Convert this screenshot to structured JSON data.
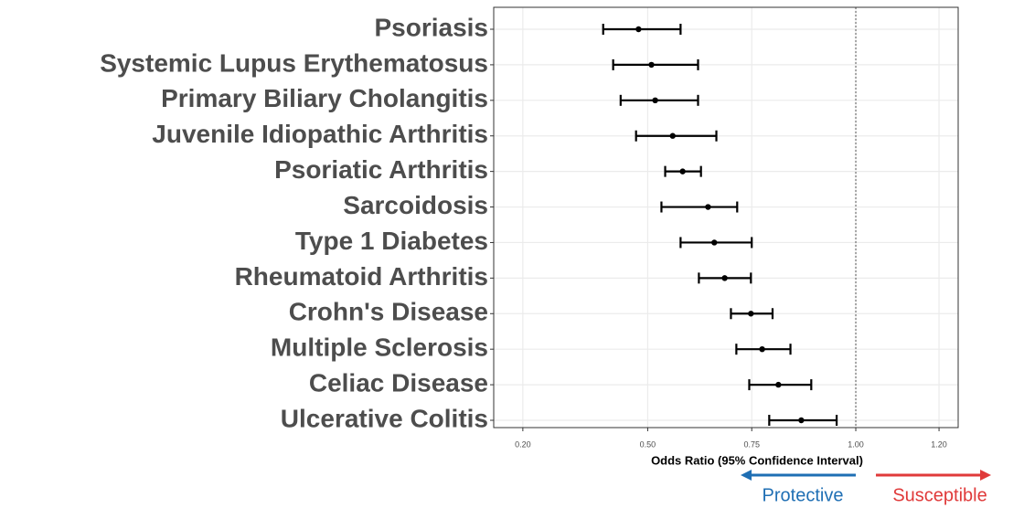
{
  "chart_data": {
    "type": "forest",
    "categories": [
      "Psoriasis",
      "Systemic Lupus Erythematosus",
      "Primary Biliary Cholangitis",
      "Juvenile Idiopathic Arthritis",
      "Psoriatic Arthritis",
      "Sarcoidosis",
      "Type 1 Diabetes",
      "Rheumatoid Arthritis",
      "Crohn's Disease",
      "Multiple Sclerosis",
      "Celiac Disease",
      "Ulcerative Colitis"
    ],
    "values": [
      0.478,
      0.509,
      0.518,
      0.56,
      0.584,
      0.645,
      0.66,
      0.685,
      0.748,
      0.775,
      0.814,
      0.869
    ],
    "lower": [
      0.393,
      0.417,
      0.435,
      0.472,
      0.542,
      0.533,
      0.579,
      0.623,
      0.7,
      0.713,
      0.744,
      0.792
    ],
    "upper": [
      0.579,
      0.621,
      0.621,
      0.665,
      0.628,
      0.715,
      0.75,
      0.748,
      0.8,
      0.843,
      0.893,
      0.954
    ],
    "color": "#000000",
    "x_label": "Odds Ratio (95% Confidence Interval)",
    "xlim": [
      0.13,
      1.246
    ],
    "xticks": [
      {
        "value": 0.2,
        "label": "0.20"
      },
      {
        "value": 0.5,
        "label": "0.50"
      },
      {
        "value": 0.75,
        "label": "0.75"
      },
      {
        "value": 1.0,
        "label": "1.00"
      },
      {
        "value": 1.2,
        "label": "1.20"
      }
    ],
    "ref_line": 1.0,
    "grid": true,
    "annotations": [
      {
        "text": "Protective",
        "color": "#1f6fb4",
        "direction": "left"
      },
      {
        "text": "Susceptible",
        "color": "#e03a3a",
        "direction": "right"
      }
    ]
  }
}
